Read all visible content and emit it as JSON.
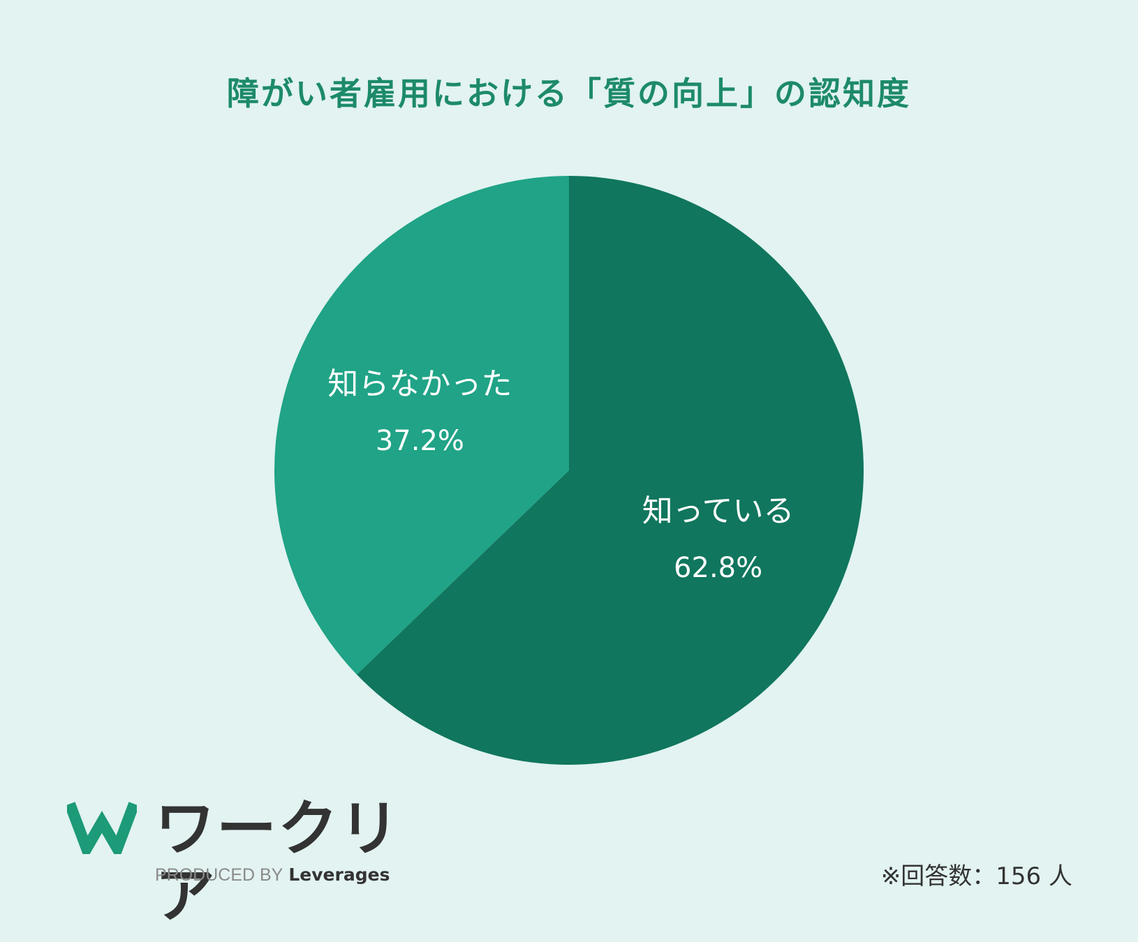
{
  "title": "障がい者雇用における「質の向上」の認知度",
  "colors": {
    "background": "#e2f3f1",
    "title": "#1d8a6a",
    "known": "#10765d",
    "unknown": "#20a386",
    "label_text": "#ffffff"
  },
  "chart_data": {
    "type": "pie",
    "slices": [
      {
        "label": "知っている",
        "value": 62.8,
        "value_label": "62.8%",
        "color": "#10765d"
      },
      {
        "label": "知らなかった",
        "value": 37.2,
        "value_label": "37.2%",
        "color": "#20a386"
      }
    ],
    "start": "12 o'clock",
    "direction": "clockwise"
  },
  "logo": {
    "name": "ワークリア",
    "produced_by": "PRODUCED BY",
    "brand": "Leverages"
  },
  "footnote": "※回答数：156 人"
}
